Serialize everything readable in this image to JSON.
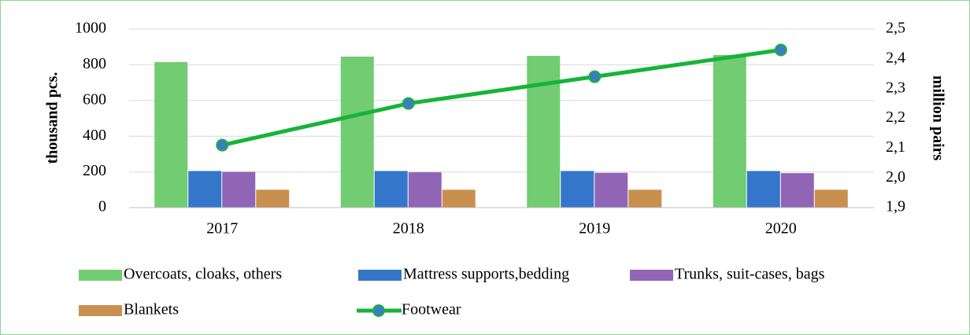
{
  "chart_data": {
    "type": "bar",
    "categories": [
      "2017",
      "2018",
      "2019",
      "2020"
    ],
    "ylabel": "thousand pcs.",
    "y2label": "million pairs",
    "ylim": [
      0,
      1000
    ],
    "yticks": [
      0,
      200,
      400,
      600,
      800,
      1000
    ],
    "y2lim": [
      1.9,
      2.5
    ],
    "y2ticks": [
      {
        "value": 1.9,
        "label": "1,9"
      },
      {
        "value": 2.0,
        "label": "2,0"
      },
      {
        "value": 2.1,
        "label": "2,1"
      },
      {
        "value": 2.2,
        "label": "2,2"
      },
      {
        "value": 2.3,
        "label": "2,3"
      },
      {
        "value": 2.4,
        "label": "2,4"
      },
      {
        "value": 2.5,
        "label": "2,5"
      }
    ],
    "grid": true,
    "series": [
      {
        "name": "Overcoats, cloaks, others",
        "color": "#72cc72",
        "values": [
          815,
          846,
          850,
          855
        ]
      },
      {
        "name": "Mattress supports,bedding",
        "color": "#3476c9",
        "values": [
          205,
          205,
          205,
          205
        ]
      },
      {
        "name": "Trunks, suit-cases, bags",
        "color": "#9065b5",
        "values": [
          200,
          198,
          195,
          193
        ]
      },
      {
        "name": "Blankets",
        "color": "#c98f4f",
        "values": [
          100,
          100,
          100,
          100
        ]
      },
      {
        "name": "Footwear",
        "type": "line",
        "axis": "y2",
        "color": "#17b33a",
        "marker_color": "#3a7cc9",
        "values": [
          2.11,
          2.25,
          2.34,
          2.43
        ]
      }
    ]
  }
}
